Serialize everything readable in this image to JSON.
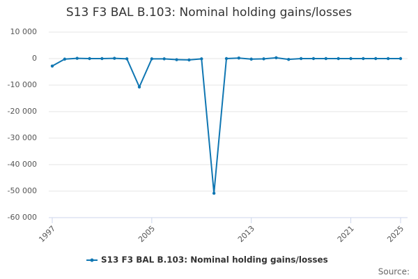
{
  "chart_data": {
    "type": "line",
    "title": "S13 F3 BAL B.103: Nominal holding gains/losses",
    "x": [
      1997,
      1998,
      1999,
      2000,
      2001,
      2002,
      2003,
      2004,
      2005,
      2006,
      2007,
      2008,
      2009,
      2010,
      2011,
      2012,
      2013,
      2014,
      2015,
      2016,
      2017,
      2018,
      2019,
      2020,
      2021,
      2022,
      2023,
      2024,
      2025
    ],
    "series": [
      {
        "name": "S13 F3 BAL B.103: Nominal holding gains/losses",
        "color": "#0f76b2",
        "values": [
          -2800,
          -200,
          100,
          0,
          0,
          100,
          -100,
          -10700,
          -100,
          -100,
          -400,
          -500,
          -100,
          -50800,
          0,
          200,
          -200,
          -100,
          300,
          -300,
          0,
          0,
          0,
          0,
          0,
          0,
          0,
          0,
          0
        ]
      }
    ],
    "xlim": [
      1997,
      2025
    ],
    "xticks": [
      1997,
      2005,
      2013,
      2021,
      2025
    ],
    "ylim": [
      -60000,
      10000
    ],
    "yticks": [
      {
        "value": 10000,
        "label": "10 000"
      },
      0,
      {
        "value": -10000,
        "label": "-10 000"
      },
      {
        "value": -20000,
        "label": "-20 000"
      },
      {
        "value": -30000,
        "label": "-30 000"
      },
      {
        "value": -40000,
        "label": "-40 000"
      },
      {
        "value": -50000,
        "label": "-50 000"
      },
      {
        "value": -60000,
        "label": "-60 000"
      }
    ],
    "grid": true,
    "source": "Source:"
  }
}
